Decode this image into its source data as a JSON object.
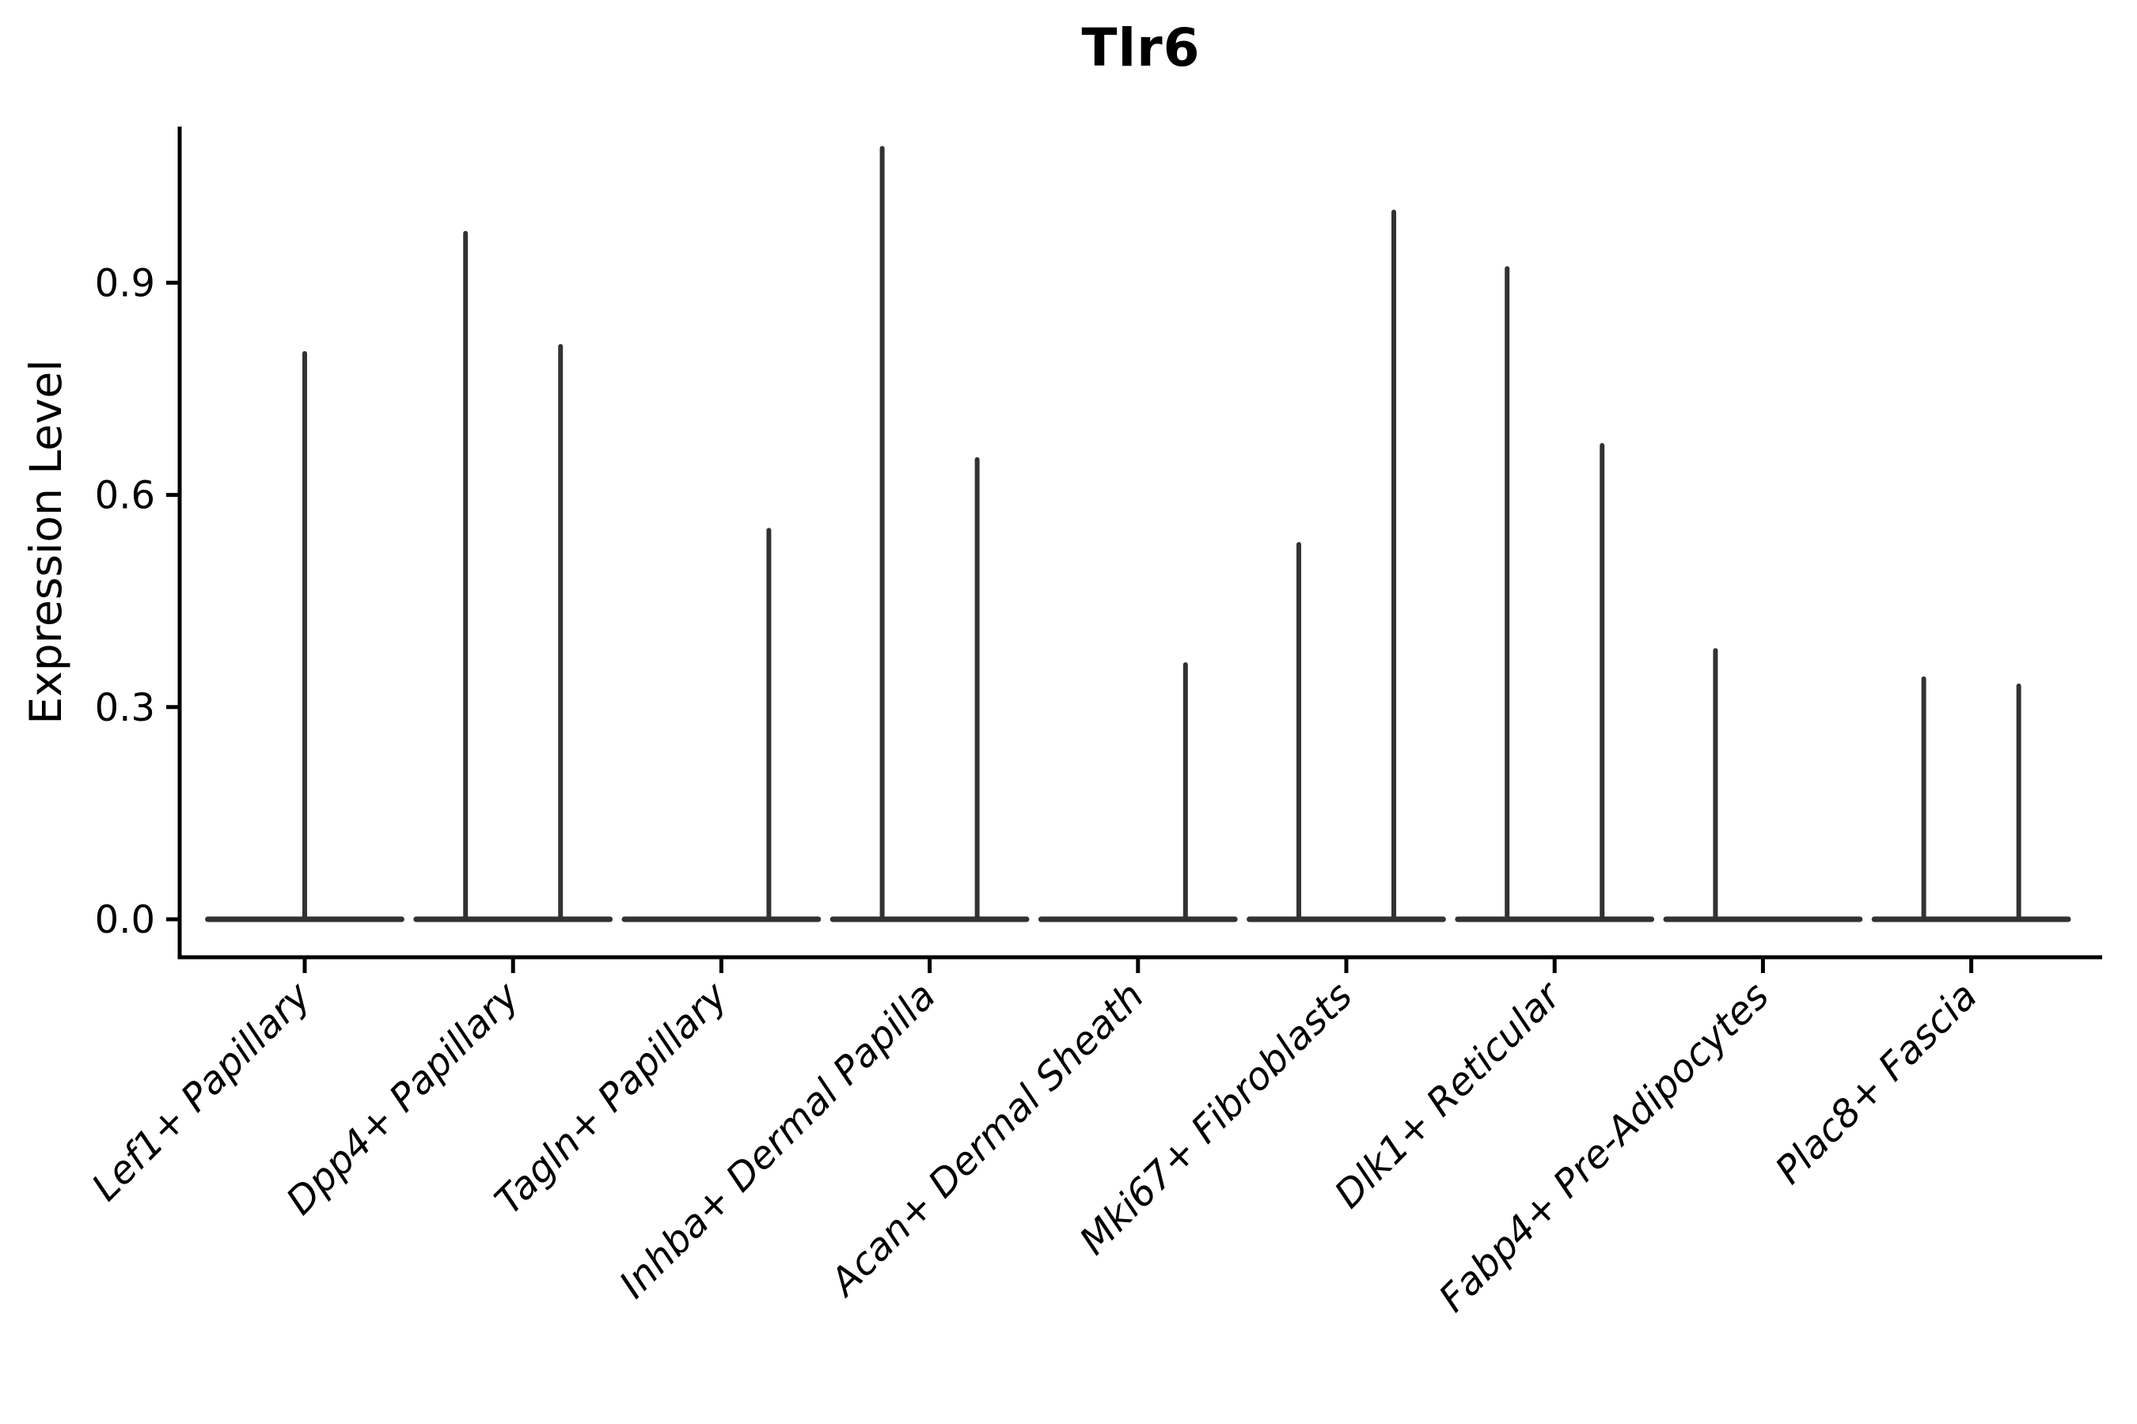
{
  "figure": {
    "background": "#ffffff"
  },
  "chart_data": {
    "type": "violin",
    "title": "Tlr6",
    "ylabel": "Expression Level",
    "xlabel": "",
    "ylim": [
      -0.053,
      1.121
    ],
    "y_ticks": [
      {
        "v": 0.0,
        "label": "0.0"
      },
      {
        "v": 0.3,
        "label": "0.3"
      },
      {
        "v": 0.6,
        "label": "0.6"
      },
      {
        "v": 0.9,
        "label": "0.9"
      }
    ],
    "grid": false,
    "legend_position": "none",
    "style": {
      "violin_color": "#323232",
      "axis_color": "#000000",
      "baseline_halfwidth_frac": 0.465,
      "x_label_rotation_deg": 45
    },
    "zero_baseline": true,
    "categories": [
      {
        "label": "Lef1+ Papillary",
        "violins": [
          {
            "offset_frac": 0.0,
            "max_expression": 0.8
          }
        ]
      },
      {
        "label": "Dpp4+ Papillary",
        "violins": [
          {
            "offset_frac": -0.228,
            "max_expression": 0.97
          },
          {
            "offset_frac": 0.228,
            "max_expression": 0.81
          }
        ]
      },
      {
        "label": "Tagln+ Papillary",
        "violins": [
          {
            "offset_frac": 0.228,
            "max_expression": 0.55
          }
        ]
      },
      {
        "label": "Inhba+ Dermal Papilla",
        "violins": [
          {
            "offset_frac": -0.228,
            "max_expression": 1.09
          },
          {
            "offset_frac": 0.228,
            "max_expression": 0.65
          }
        ]
      },
      {
        "label": "Acan+ Dermal Sheath",
        "violins": [
          {
            "offset_frac": 0.228,
            "max_expression": 0.36
          }
        ]
      },
      {
        "label": "Mki67+ Fibroblasts",
        "violins": [
          {
            "offset_frac": -0.228,
            "max_expression": 0.53
          },
          {
            "offset_frac": 0.228,
            "max_expression": 1.0
          }
        ]
      },
      {
        "label": "Dlk1+ Reticular",
        "violins": [
          {
            "offset_frac": -0.228,
            "max_expression": 0.92
          },
          {
            "offset_frac": 0.228,
            "max_expression": 0.67
          }
        ]
      },
      {
        "label": "Fabp4+ Pre-Adipocytes",
        "violins": [
          {
            "offset_frac": -0.228,
            "max_expression": 0.38
          }
        ]
      },
      {
        "label": "Plac8+ Fascia",
        "violins": [
          {
            "offset_frac": -0.228,
            "max_expression": 0.34
          },
          {
            "offset_frac": 0.228,
            "max_expression": 0.33
          }
        ]
      }
    ]
  }
}
